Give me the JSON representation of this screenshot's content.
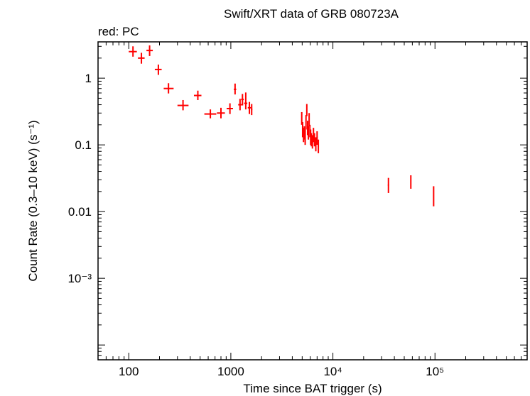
{
  "chart_data": {
    "type": "scatter",
    "title": "Swift/XRT data of GRB 080723A",
    "subtitle": "red: PC",
    "xlabel": "Time since BAT trigger (s)",
    "ylabel": "Count Rate (0.3–10 keV) (s⁻¹)",
    "xscale": "log",
    "yscale": "log",
    "xlim": [
      50,
      800000
    ],
    "ylim": [
      6e-05,
      3.5
    ],
    "grid": false,
    "color": "#ff0000",
    "x_ticks": [
      {
        "value": 100,
        "label": "100"
      },
      {
        "value": 1000,
        "label": "1000"
      },
      {
        "value": 10000,
        "label": "10⁴"
      },
      {
        "value": 100000,
        "label": "10⁵"
      }
    ],
    "y_ticks": [
      {
        "value": 1,
        "label": "1"
      },
      {
        "value": 0.1,
        "label": "0.1"
      },
      {
        "value": 0.01,
        "label": "0.01"
      },
      {
        "value": 0.001,
        "label": "10⁻³"
      }
    ],
    "series": [
      {
        "points": [
          {
            "x": 110,
            "xlo": 100,
            "xhi": 120,
            "y": 2.5,
            "ylo": 2.1,
            "yhi": 3.0
          },
          {
            "x": 133,
            "xlo": 123,
            "xhi": 143,
            "y": 2.0,
            "ylo": 1.65,
            "yhi": 2.4
          },
          {
            "x": 160,
            "xlo": 149,
            "xhi": 172,
            "y": 2.6,
            "ylo": 2.15,
            "yhi": 3.1
          },
          {
            "x": 195,
            "xlo": 180,
            "xhi": 210,
            "y": 1.35,
            "ylo": 1.12,
            "yhi": 1.6
          },
          {
            "x": 245,
            "xlo": 220,
            "xhi": 275,
            "y": 0.7,
            "ylo": 0.59,
            "yhi": 0.84
          },
          {
            "x": 340,
            "xlo": 300,
            "xhi": 385,
            "y": 0.39,
            "ylo": 0.33,
            "yhi": 0.47
          },
          {
            "x": 475,
            "xlo": 435,
            "xhi": 515,
            "y": 0.55,
            "ylo": 0.47,
            "yhi": 0.65
          },
          {
            "x": 630,
            "xlo": 550,
            "xhi": 720,
            "y": 0.29,
            "ylo": 0.25,
            "yhi": 0.34
          },
          {
            "x": 800,
            "xlo": 730,
            "xhi": 875,
            "y": 0.3,
            "ylo": 0.25,
            "yhi": 0.36
          },
          {
            "x": 980,
            "xlo": 910,
            "xhi": 1050,
            "y": 0.35,
            "ylo": 0.29,
            "yhi": 0.42
          },
          {
            "x": 1100,
            "xlo": 1070,
            "xhi": 1130,
            "y": 0.68,
            "ylo": 0.57,
            "yhi": 0.83
          },
          {
            "x": 1230,
            "xlo": 1180,
            "xhi": 1280,
            "y": 0.4,
            "ylo": 0.33,
            "yhi": 0.49
          },
          {
            "x": 1300,
            "xlo": 1260,
            "xhi": 1340,
            "y": 0.48,
            "ylo": 0.39,
            "yhi": 0.58
          },
          {
            "x": 1400,
            "xlo": 1350,
            "xhi": 1450,
            "y": 0.42,
            "ylo": 0.34,
            "yhi": 0.61
          },
          {
            "x": 1520,
            "xlo": 1465,
            "xhi": 1575,
            "y": 0.36,
            "ylo": 0.29,
            "yhi": 0.44
          },
          {
            "x": 1600,
            "xlo": 1575,
            "xhi": 1625,
            "y": 0.34,
            "ylo": 0.28,
            "yhi": 0.41
          },
          {
            "x": 4950,
            "xlo": 4900,
            "xhi": 5000,
            "y": 0.25,
            "ylo": 0.2,
            "yhi": 0.31
          },
          {
            "x": 5050,
            "xlo": 5000,
            "xhi": 5100,
            "y": 0.17,
            "ylo": 0.13,
            "yhi": 0.22
          },
          {
            "x": 5150,
            "xlo": 5100,
            "xhi": 5200,
            "y": 0.14,
            "ylo": 0.11,
            "yhi": 0.18
          },
          {
            "x": 5250,
            "xlo": 5200,
            "xhi": 5300,
            "y": 0.15,
            "ylo": 0.12,
            "yhi": 0.19
          },
          {
            "x": 5350,
            "xlo": 5300,
            "xhi": 5400,
            "y": 0.13,
            "ylo": 0.1,
            "yhi": 0.17
          },
          {
            "x": 5450,
            "xlo": 5400,
            "xhi": 5500,
            "y": 0.22,
            "ylo": 0.17,
            "yhi": 0.28
          },
          {
            "x": 5550,
            "xlo": 5500,
            "xhi": 5600,
            "y": 0.33,
            "ylo": 0.27,
            "yhi": 0.41
          },
          {
            "x": 5650,
            "xlo": 5600,
            "xhi": 5700,
            "y": 0.18,
            "ylo": 0.14,
            "yhi": 0.23
          },
          {
            "x": 5750,
            "xlo": 5700,
            "xhi": 5800,
            "y": 0.15,
            "ylo": 0.12,
            "yhi": 0.19
          },
          {
            "x": 5850,
            "xlo": 5800,
            "xhi": 5900,
            "y": 0.24,
            "ylo": 0.19,
            "yhi": 0.3
          },
          {
            "x": 5950,
            "xlo": 5900,
            "xhi": 6000,
            "y": 0.16,
            "ylo": 0.13,
            "yhi": 0.2
          },
          {
            "x": 6050,
            "xlo": 6000,
            "xhi": 6100,
            "y": 0.13,
            "ylo": 0.1,
            "yhi": 0.17
          },
          {
            "x": 6150,
            "xlo": 6100,
            "xhi": 6200,
            "y": 0.12,
            "ylo": 0.095,
            "yhi": 0.15
          },
          {
            "x": 6300,
            "xlo": 6200,
            "xhi": 6400,
            "y": 0.11,
            "ylo": 0.088,
            "yhi": 0.14
          },
          {
            "x": 6450,
            "xlo": 6400,
            "xhi": 6500,
            "y": 0.14,
            "ylo": 0.11,
            "yhi": 0.18
          },
          {
            "x": 6600,
            "xlo": 6500,
            "xhi": 6700,
            "y": 0.12,
            "ylo": 0.095,
            "yhi": 0.15
          },
          {
            "x": 6800,
            "xlo": 6700,
            "xhi": 6900,
            "y": 0.1,
            "ylo": 0.08,
            "yhi": 0.13
          },
          {
            "x": 7000,
            "xlo": 6900,
            "xhi": 7100,
            "y": 0.13,
            "ylo": 0.1,
            "yhi": 0.16
          },
          {
            "x": 7200,
            "xlo": 7100,
            "xhi": 7300,
            "y": 0.095,
            "ylo": 0.075,
            "yhi": 0.12
          },
          {
            "x": 35000,
            "xlo": 34500,
            "xhi": 35500,
            "y": 0.025,
            "ylo": 0.019,
            "yhi": 0.032
          },
          {
            "x": 58000,
            "xlo": 57500,
            "xhi": 58500,
            "y": 0.028,
            "ylo": 0.022,
            "yhi": 0.035
          },
          {
            "x": 97000,
            "xlo": 96000,
            "xhi": 98000,
            "y": 0.017,
            "ylo": 0.012,
            "yhi": 0.024
          }
        ]
      }
    ]
  }
}
